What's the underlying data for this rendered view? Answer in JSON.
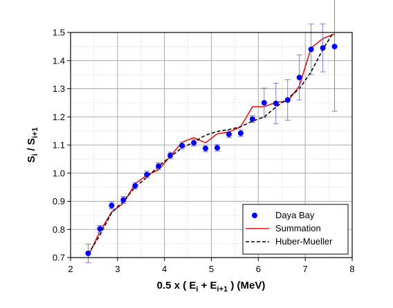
{
  "chart_data": {
    "type": "scatter",
    "xlim": [
      2,
      8
    ],
    "ylim": [
      0.7,
      1.5
    ],
    "x_ticks": [
      2,
      3,
      4,
      5,
      6,
      7,
      8
    ],
    "x_tick_labels": [
      "2",
      "3",
      "4",
      "5",
      "6",
      "7",
      "8"
    ],
    "y_ticks": [
      0.7,
      0.8,
      0.9,
      1.0,
      1.1,
      1.2,
      1.3,
      1.4,
      1.5
    ],
    "y_tick_labels": [
      "0.7",
      "0.8",
      "0.9",
      "1.0",
      "1.1",
      "1.2",
      "1.3",
      "1.4",
      "1.5"
    ],
    "grid": true,
    "legend_position": "bottom-right",
    "xlabel": {
      "prefix": "0.5 x ( E",
      "sub1": "i",
      "middle": " + E",
      "sub2": "i+1",
      "suffix": " ) (MeV)"
    },
    "ylabel": {
      "s1": "S",
      "sub1": "i",
      "mid": " / S",
      "sub2": "i+1"
    },
    "series": [
      {
        "name": "Daya Bay",
        "kind": "points",
        "color": "#0000ff",
        "x": [
          2.375,
          2.625,
          2.875,
          3.125,
          3.375,
          3.625,
          3.875,
          4.125,
          4.375,
          4.625,
          4.875,
          5.125,
          5.375,
          5.625,
          5.875,
          6.125,
          6.375,
          6.625,
          6.875,
          7.125,
          7.375,
          7.625
        ],
        "y": [
          0.715,
          0.802,
          0.885,
          0.905,
          0.955,
          0.995,
          1.025,
          1.063,
          1.098,
          1.108,
          1.088,
          1.09,
          1.138,
          1.142,
          1.192,
          1.25,
          1.248,
          1.26,
          1.34,
          1.44,
          1.445,
          1.45
        ],
        "err": [
          0.033,
          0.012,
          0.012,
          0.012,
          0.012,
          0.012,
          0.012,
          0.012,
          0.012,
          0.012,
          0.012,
          0.012,
          0.012,
          0.012,
          0.012,
          0.052,
          0.072,
          0.072,
          0.08,
          0.09,
          0.085,
          0.23
        ]
      },
      {
        "name": "Summation",
        "kind": "line",
        "color": "#ee1111",
        "dash": "solid",
        "x": [
          2.375,
          2.625,
          2.875,
          3.125,
          3.375,
          3.625,
          3.875,
          4.125,
          4.375,
          4.625,
          4.875,
          5.125,
          5.375,
          5.625,
          5.875,
          6.125,
          6.375,
          6.625,
          6.875,
          7.125,
          7.375,
          7.625
        ],
        "y": [
          0.705,
          0.793,
          0.862,
          0.893,
          0.962,
          0.993,
          1.012,
          1.06,
          1.11,
          1.126,
          1.108,
          1.14,
          1.146,
          1.165,
          1.236,
          1.236,
          1.252,
          1.255,
          1.31,
          1.445,
          1.478,
          1.495
        ]
      },
      {
        "name": "Huber-Mueller",
        "kind": "line",
        "color": "#000000",
        "dash": "dashed",
        "x": [
          2.375,
          2.625,
          2.875,
          3.125,
          3.375,
          3.625,
          3.875,
          4.125,
          4.375,
          4.625,
          4.875,
          5.125,
          5.375,
          5.625,
          5.875,
          6.125,
          6.375,
          6.625,
          6.875,
          7.125,
          7.375,
          7.6
        ],
        "y": [
          0.712,
          0.78,
          0.86,
          0.9,
          0.95,
          0.985,
          1.025,
          1.058,
          1.09,
          1.11,
          1.135,
          1.148,
          1.155,
          1.165,
          1.185,
          1.2,
          1.235,
          1.265,
          1.3,
          1.36,
          1.44,
          1.5
        ]
      }
    ]
  }
}
